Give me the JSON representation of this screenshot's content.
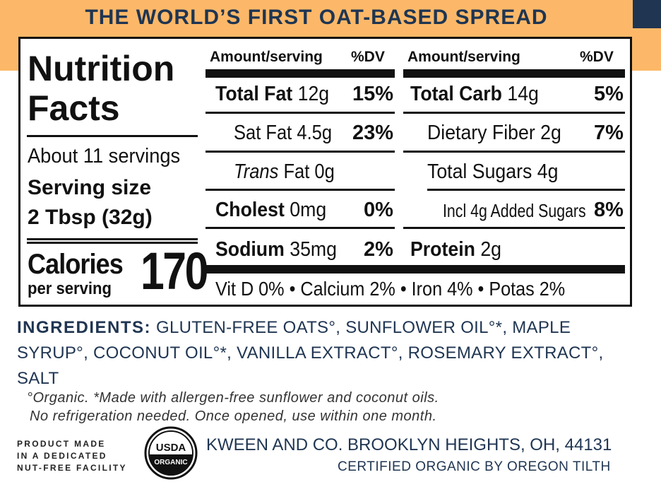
{
  "tagline": "THE WORLD’S FIRST OAT-BASED SPREAD",
  "colors": {
    "band": "#fcb868",
    "navy": "#1f3552"
  },
  "nutrition": {
    "title_line1": "Nutrition",
    "title_line2": "Facts",
    "servings": "About 11 servings",
    "serving_size_label": "Serving size",
    "serving_size_value": "2 Tbsp (32g)",
    "calories_label": "Calories",
    "per_serving": "per serving",
    "calories_value": "170",
    "left_header": {
      "amount": "Amount/serving",
      "dv": "%DV"
    },
    "right_header": {
      "amount": "Amount/serving",
      "dv": "%DV"
    },
    "total_fat": {
      "label": "Total Fat",
      "amount": "12g",
      "dv": "15%"
    },
    "sat_fat": {
      "label": "Sat Fat",
      "amount": "4.5g",
      "dv": "23%"
    },
    "trans_fat": {
      "label_italic": "Trans",
      "label": "Fat",
      "amount": "0g"
    },
    "cholest": {
      "label": "Cholest",
      "amount": "0mg",
      "dv": "0%"
    },
    "sodium": {
      "label": "Sodium",
      "amount": "35mg",
      "dv": "2%"
    },
    "total_carb": {
      "label": "Total Carb",
      "amount": "14g",
      "dv": "5%"
    },
    "fiber": {
      "label": "Dietary Fiber",
      "amount": "2g",
      "dv": "7%"
    },
    "sugars": {
      "label": "Total Sugars",
      "amount": "4g"
    },
    "added_sugars": {
      "label": "Incl 4g Added Sugars",
      "dv": "8%"
    },
    "protein": {
      "label": "Protein",
      "amount": "2g"
    },
    "vitamins": "Vit D 0% • Calcium 2% • Iron 4% • Potas 2%"
  },
  "ingredients": {
    "heading": "INGREDIENTS:",
    "text": " GLUTEN-FREE OATS°, SUNFLOWER OIL°*, MAPLE SYRUP°, COCONUT OIL°*, VANILLA EXTRACT°, ROSEMARY EXTRACT°, SALT"
  },
  "notes": {
    "line1": "°Organic. *Made with allergen-free sunflower and coconut oils.",
    "line2": "No refrigeration needed. Once opened, use within one month."
  },
  "facility": {
    "line1": "PRODUCT MADE",
    "line2": "IN A DEDICATED",
    "line3": "NUT-FREE FACILITY"
  },
  "usda": {
    "top": "USDA",
    "bottom": "ORGANIC"
  },
  "address": "KWEEN AND CO. BROOKLYN HEIGHTS, OH, 44131",
  "certification": "CERTIFIED ORGANIC BY OREGON TILTH"
}
